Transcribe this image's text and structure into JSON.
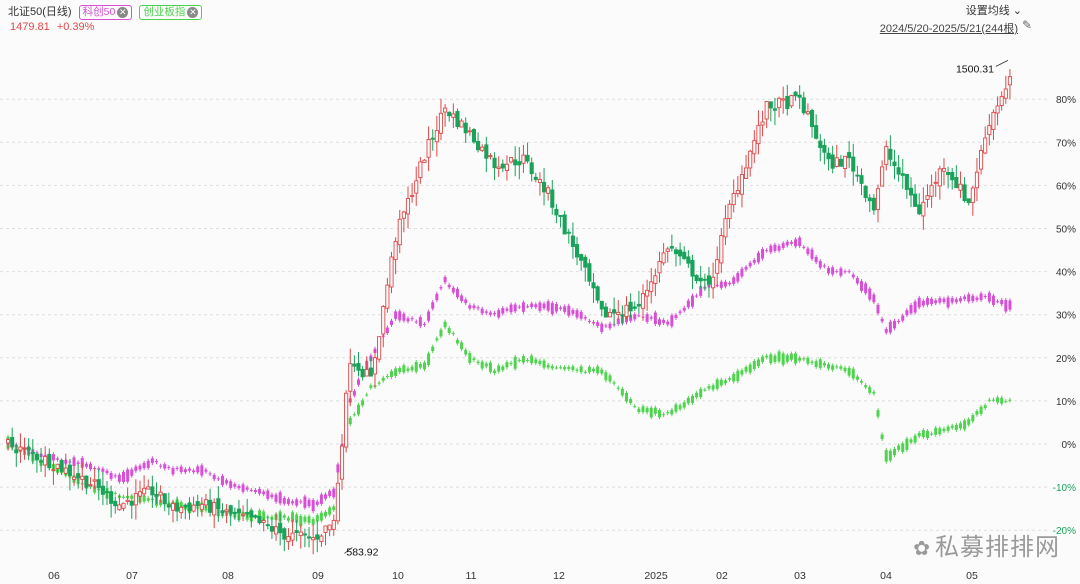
{
  "header": {
    "index_name": "北证50(日线)",
    "price": "1479.81",
    "change": "+0.39%",
    "tag_kc50": "科创50",
    "tag_cyb": "创业板指",
    "settings_label": "设置均线",
    "date_range": "2024/5/20-2025/5/21(244根)"
  },
  "colors": {
    "up": "#e04848",
    "down": "#19a25a",
    "kc50": "#d64fd6",
    "cyb": "#4fd34f"
  },
  "watermark": "私募排排网",
  "chart_data": {
    "type": "line",
    "title": "",
    "xlabel": "",
    "ylabel": "",
    "x_ticks": [
      "06",
      "07",
      "08",
      "09",
      "10",
      "11",
      "12",
      "2025",
      "02",
      "03",
      "04",
      "05"
    ],
    "y_ticks": [
      "80%",
      "70%",
      "60%",
      "50%",
      "40%",
      "30%",
      "20%",
      "10%",
      "0%",
      "-10%",
      "-20%"
    ],
    "ylim": [
      -22,
      100
    ],
    "annotations": {
      "high": "1500.31",
      "low": "583.92"
    },
    "series": [
      {
        "name": "北证50",
        "style": "candlestick",
        "anchors": [
          [
            0,
            0
          ],
          [
            10,
            -4
          ],
          [
            20,
            -9
          ],
          [
            27,
            -14
          ],
          [
            35,
            -11
          ],
          [
            40,
            -15
          ],
          [
            47,
            -14
          ],
          [
            53,
            -16
          ],
          [
            60,
            -18
          ],
          [
            67,
            -21
          ],
          [
            74,
            -22
          ],
          [
            79,
            -18
          ],
          [
            83,
            20
          ],
          [
            88,
            15
          ],
          [
            94,
            48
          ],
          [
            101,
            67
          ],
          [
            106,
            78
          ],
          [
            112,
            72
          ],
          [
            118,
            65
          ],
          [
            125,
            66
          ],
          [
            131,
            58
          ],
          [
            139,
            42
          ],
          [
            144,
            30
          ],
          [
            153,
            32
          ],
          [
            160,
            46
          ],
          [
            170,
            36
          ],
          [
            175,
            55
          ],
          [
            184,
            78
          ],
          [
            192,
            80
          ],
          [
            199,
            65
          ],
          [
            204,
            66
          ],
          [
            210,
            55
          ],
          [
            213,
            68
          ],
          [
            221,
            54
          ],
          [
            227,
            65
          ],
          [
            233,
            56
          ],
          [
            238,
            75
          ],
          [
            243,
            85
          ]
        ]
      },
      {
        "name": "科创50",
        "style": "line",
        "anchors": [
          [
            0,
            0
          ],
          [
            10,
            -3
          ],
          [
            20,
            -5
          ],
          [
            27,
            -8
          ],
          [
            35,
            -4
          ],
          [
            40,
            -6
          ],
          [
            47,
            -6
          ],
          [
            53,
            -9
          ],
          [
            60,
            -11
          ],
          [
            67,
            -13
          ],
          [
            74,
            -14
          ],
          [
            79,
            -11
          ],
          [
            83,
            10
          ],
          [
            88,
            20
          ],
          [
            94,
            30
          ],
          [
            101,
            28
          ],
          [
            106,
            38
          ],
          [
            112,
            32
          ],
          [
            118,
            30
          ],
          [
            125,
            32
          ],
          [
            131,
            32
          ],
          [
            139,
            30
          ],
          [
            144,
            27
          ],
          [
            153,
            30
          ],
          [
            160,
            28
          ],
          [
            170,
            37
          ],
          [
            175,
            37
          ],
          [
            184,
            45
          ],
          [
            192,
            47
          ],
          [
            199,
            40
          ],
          [
            204,
            40
          ],
          [
            210,
            34
          ],
          [
            213,
            26
          ],
          [
            221,
            33
          ],
          [
            227,
            33
          ],
          [
            233,
            34
          ],
          [
            238,
            34
          ],
          [
            243,
            32
          ]
        ]
      },
      {
        "name": "创业板指",
        "style": "line",
        "anchors": [
          [
            0,
            0
          ],
          [
            10,
            -5
          ],
          [
            20,
            -10
          ],
          [
            27,
            -12
          ],
          [
            35,
            -13
          ],
          [
            40,
            -14
          ],
          [
            47,
            -15
          ],
          [
            53,
            -16
          ],
          [
            60,
            -17
          ],
          [
            67,
            -17
          ],
          [
            74,
            -18
          ],
          [
            79,
            -15
          ],
          [
            83,
            5
          ],
          [
            88,
            13
          ],
          [
            94,
            17
          ],
          [
            101,
            18
          ],
          [
            106,
            28
          ],
          [
            112,
            20
          ],
          [
            118,
            17
          ],
          [
            125,
            20
          ],
          [
            131,
            18
          ],
          [
            139,
            17
          ],
          [
            144,
            17
          ],
          [
            153,
            8
          ],
          [
            160,
            7
          ],
          [
            170,
            13
          ],
          [
            175,
            15
          ],
          [
            184,
            20
          ],
          [
            192,
            20
          ],
          [
            199,
            18
          ],
          [
            204,
            17
          ],
          [
            210,
            12
          ],
          [
            213,
            -3
          ],
          [
            221,
            2
          ],
          [
            227,
            3
          ],
          [
            233,
            5
          ],
          [
            238,
            10
          ],
          [
            243,
            10
          ]
        ]
      }
    ]
  }
}
